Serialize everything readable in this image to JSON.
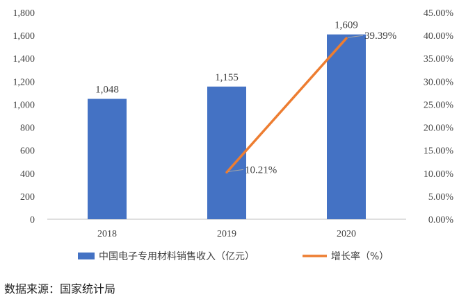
{
  "chart_data": {
    "type": "bar",
    "categories": [
      "2018",
      "2019",
      "2020"
    ],
    "series": [
      {
        "name": "中国电子专用材料销售收入（亿元）",
        "type": "bar",
        "axis": "left",
        "color": "#4472C4",
        "values": [
          1048,
          1155,
          1609
        ],
        "labels": [
          "1,048",
          "1,155",
          "1,609"
        ]
      },
      {
        "name": "增长率（%）",
        "type": "line",
        "axis": "right",
        "color": "#ED7D31",
        "values": [
          null,
          10.21,
          39.39
        ],
        "labels": [
          "",
          "10.21%",
          "39.39%"
        ]
      }
    ],
    "y_left": {
      "min": 0,
      "max": 1800,
      "ticks": [
        "0",
        "200",
        "400",
        "600",
        "800",
        "1,000",
        "1,200",
        "1,400",
        "1,600",
        "1,800"
      ]
    },
    "y_right": {
      "min": 0,
      "max": 45,
      "ticks": [
        "0.00%",
        "5.00%",
        "10.00%",
        "15.00%",
        "20.00%",
        "25.00%",
        "30.00%",
        "35.00%",
        "40.00%",
        "45.00%"
      ]
    },
    "legend": "bottom",
    "grid": false
  },
  "source": "数据来源：国家统计局"
}
